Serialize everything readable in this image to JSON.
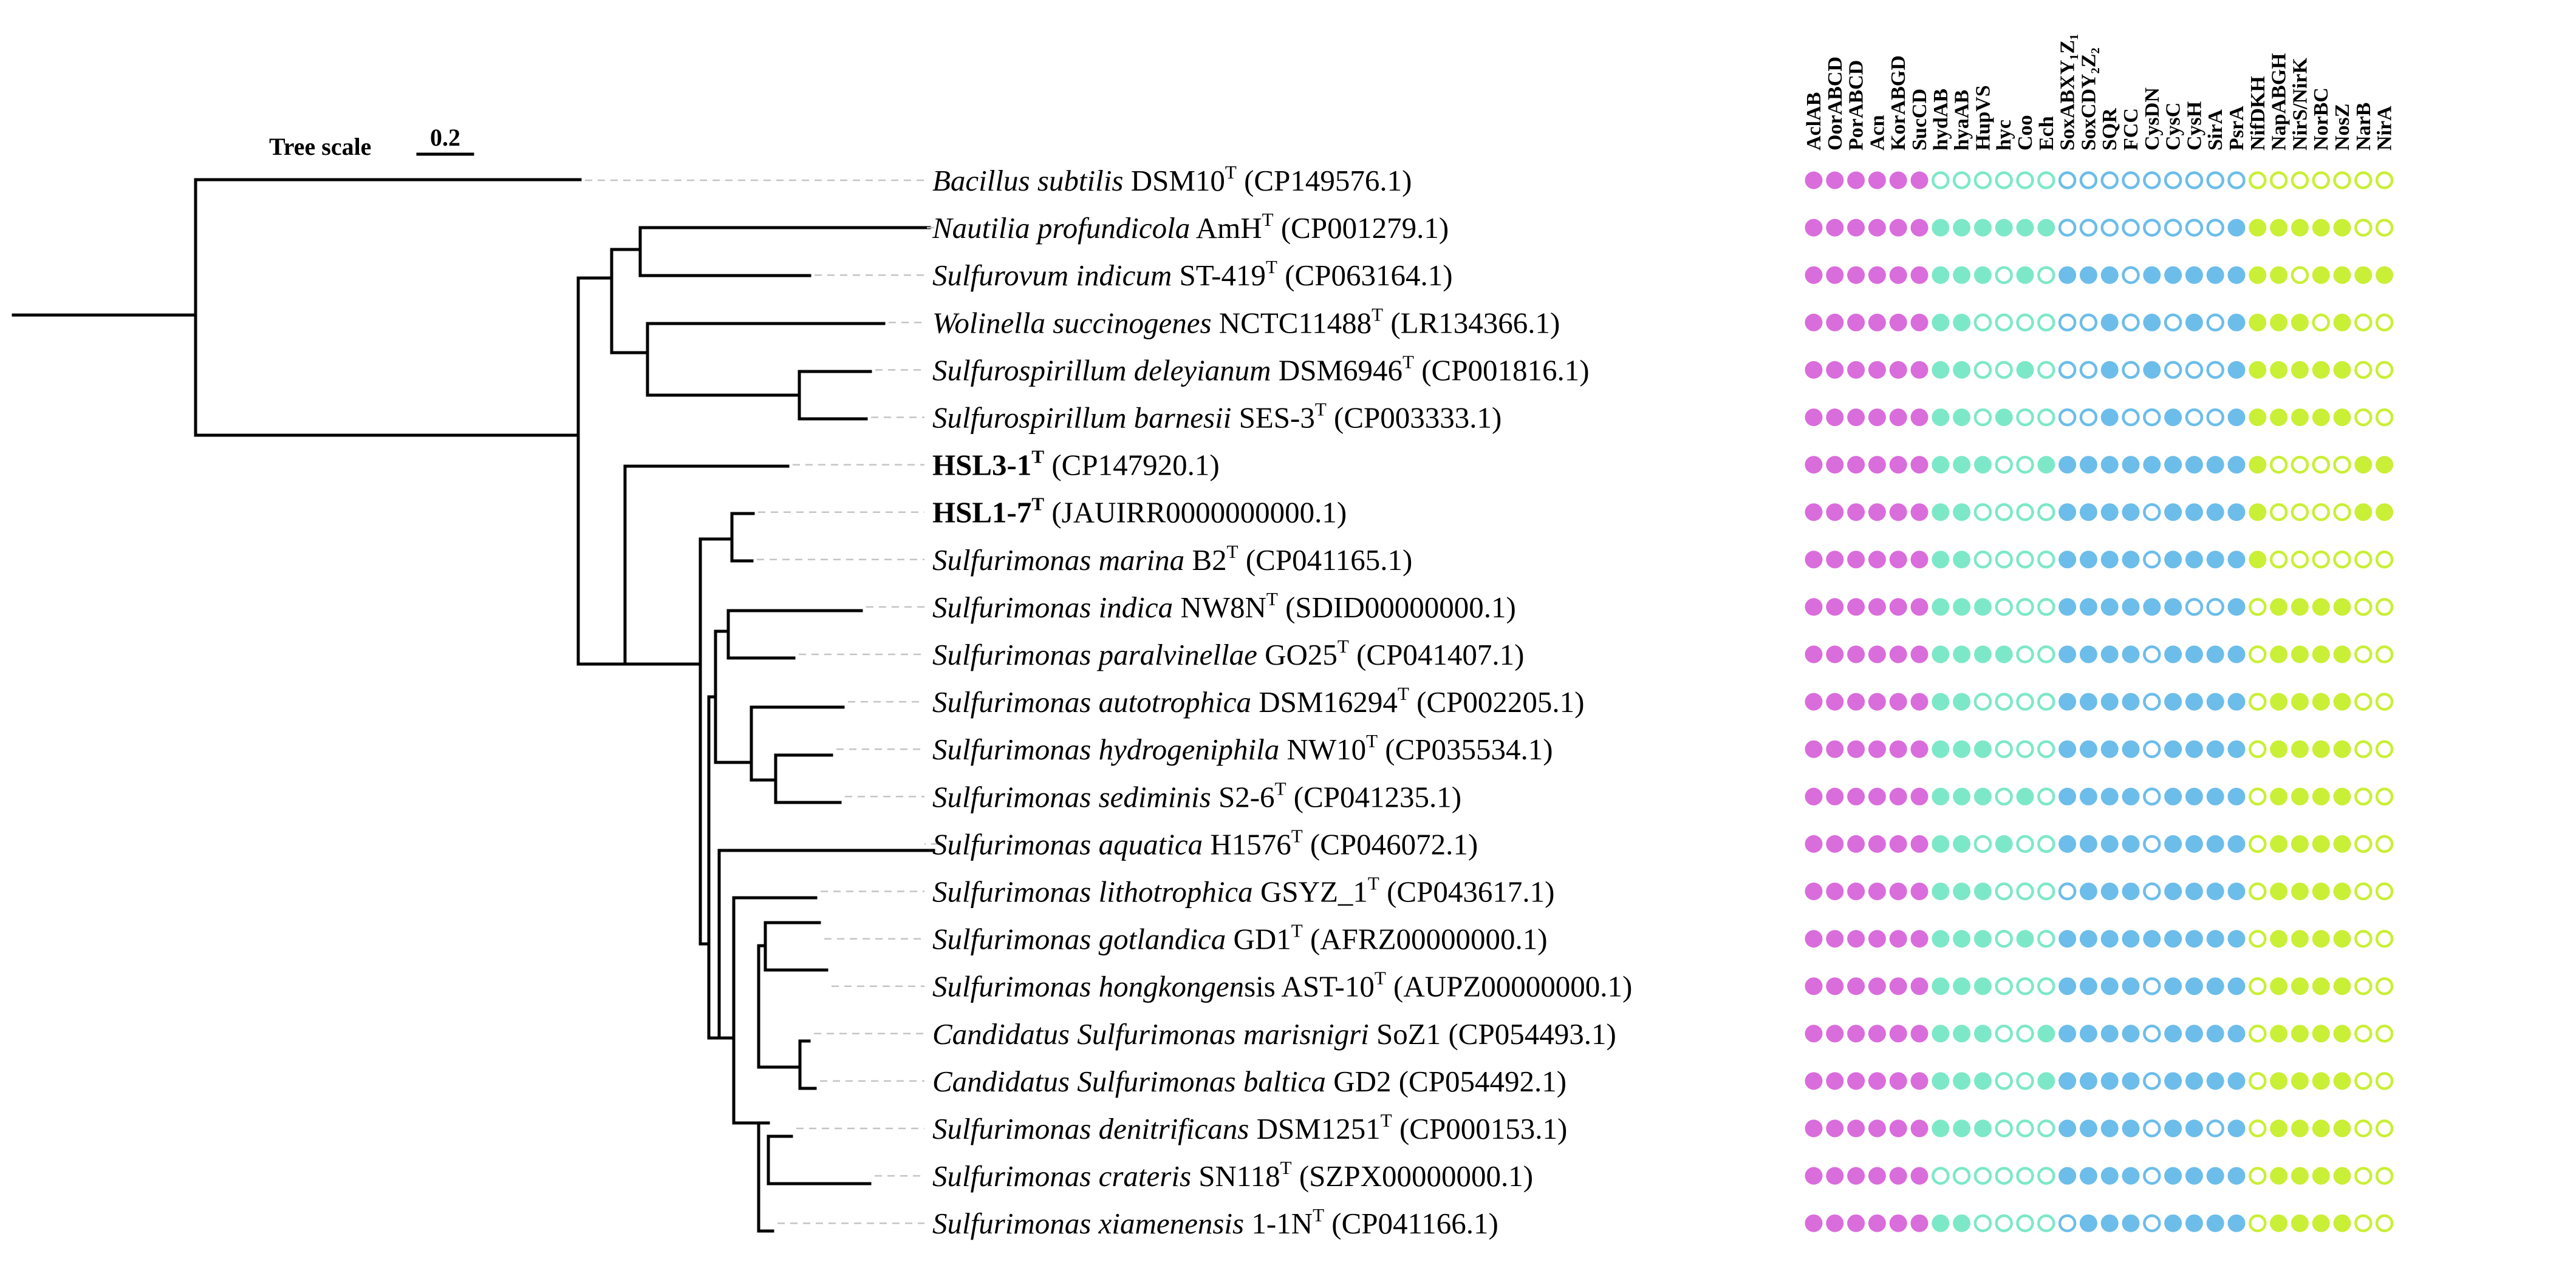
{
  "scale": {
    "title": "Tree scale",
    "value": "0.2"
  },
  "genes": [
    {
      "label": "AclAB",
      "group": "c"
    },
    {
      "label": "OorABCD",
      "group": "c"
    },
    {
      "label": "PorABCD",
      "group": "c"
    },
    {
      "label": "Acn",
      "group": "c"
    },
    {
      "label": "KorABGD",
      "group": "c"
    },
    {
      "label": "SucCD",
      "group": "c"
    },
    {
      "label": "hydAB",
      "group": "h"
    },
    {
      "label": "hyaAB",
      "group": "h"
    },
    {
      "label": "HupVS",
      "group": "h"
    },
    {
      "label": "hyc",
      "group": "h"
    },
    {
      "label": "Coo",
      "group": "h"
    },
    {
      "label": "Ech",
      "group": "h"
    },
    {
      "label": "SoxABXY₁Z₁",
      "group": "s"
    },
    {
      "label": "SoxCDY₂Z₂",
      "group": "s"
    },
    {
      "label": "SQR",
      "group": "s"
    },
    {
      "label": "FCC",
      "group": "s"
    },
    {
      "label": "CysDN",
      "group": "s"
    },
    {
      "label": "CysC",
      "group": "s"
    },
    {
      "label": "CysH",
      "group": "s"
    },
    {
      "label": "SirA",
      "group": "s"
    },
    {
      "label": "PsrA",
      "group": "s"
    },
    {
      "label": "NifDKH",
      "group": "n"
    },
    {
      "label": "NapABGH",
      "group": "n"
    },
    {
      "label": "NirS/NirK",
      "group": "n"
    },
    {
      "label": "NorBC",
      "group": "n"
    },
    {
      "label": "NosZ",
      "group": "n"
    },
    {
      "label": "NarB",
      "group": "n"
    },
    {
      "label": "NirA",
      "group": "n"
    }
  ],
  "colors": {
    "c": "#d96ddb",
    "h": "#7de8c8",
    "s": "#6cbde9",
    "n": "#c9ef36"
  },
  "taxa": [
    {
      "italic": "Bacillus subtilis",
      "strain": "DSM10",
      "sup": "T",
      "acc": "(CP149576.1)",
      "bold": false,
      "pattern": "111111|000000|000000000|0000000"
    },
    {
      "italic": "Nautilia profundicola",
      "strain": "AmH",
      "sup": "T",
      "acc": "(CP001279.1)",
      "bold": false,
      "pattern": "111111|111111|000000001|1111100"
    },
    {
      "italic": "Sulfurovum indicum",
      "strain": "ST-419",
      "sup": "T",
      "acc": "(CP063164.1)",
      "bold": false,
      "pattern": "111111|111010|111011111|1101111"
    },
    {
      "italic": "Wolinella succinogenes",
      "strain": "NCTC11488",
      "sup": "T",
      "acc": "(LR134366.1)",
      "bold": false,
      "pattern": "111111|110000|001010101|1110100"
    },
    {
      "italic": "Sulfurospirillum deleyianum",
      "strain": "DSM6946",
      "sup": "T",
      "acc": "(CP001816.1)",
      "bold": false,
      "pattern": "111111|110010|001010001|1111100"
    },
    {
      "italic": "Sulfurospirillum barnesii",
      "strain": "SES-3",
      "sup": "T",
      "acc": "(CP003333.1)",
      "bold": false,
      "pattern": "111111|110100|001001001|1111100"
    },
    {
      "italic": "",
      "strain": "HSL3-1",
      "sup": "T",
      "acc": "(CP147920.1)",
      "bold": true,
      "pattern": "111111|111001|111111111|1000011"
    },
    {
      "italic": "",
      "strain": "HSL1-7",
      "sup": "T",
      "acc": "(JAUIRR0000000000.1)",
      "bold": true,
      "pattern": "111111|110000|111101111|1000011"
    },
    {
      "italic": "Sulfurimonas marina",
      "strain": "B2",
      "sup": "T",
      "acc": "(CP041165.1)",
      "bold": false,
      "pattern": "111111|110000|111101111|1000000"
    },
    {
      "italic": "Sulfurimonas indica",
      "strain": "NW8N",
      "sup": "T",
      "acc": "(SDID00000000.1)",
      "bold": false,
      "pattern": "111111|111000|111111001|0111100"
    },
    {
      "italic": "Sulfurimonas paralvinellae",
      "strain": "GO25",
      "sup": "T",
      "acc": "(CP041407.1)",
      "bold": false,
      "pattern": "111111|111100|111101111|0111100"
    },
    {
      "italic": "Sulfurimonas autotrophica",
      "strain": "DSM16294",
      "sup": "T",
      "acc": "(CP002205.1)",
      "bold": false,
      "pattern": "111111|110000|111101111|0111100"
    },
    {
      "italic": "Sulfurimonas hydrogeniphila",
      "strain": "NW10",
      "sup": "T",
      "acc": "(CP035534.1)",
      "bold": false,
      "pattern": "111111|111000|111101111|0111100"
    },
    {
      "italic": "Sulfurimonas sediminis",
      "strain": "S2-6",
      "sup": "T",
      "acc": "(CP041235.1)",
      "bold": false,
      "pattern": "111111|111010|111101111|0111100"
    },
    {
      "italic": "Sulfurimonas aquatica",
      "strain": "H1576",
      "sup": "T",
      "acc": "(CP046072.1)",
      "bold": false,
      "pattern": "111111|110100|111101111|0111100"
    },
    {
      "italic": "Sulfurimonas lithotrophica",
      "strain": "GSYZ_1",
      "sup": "T",
      "acc": "(CP043617.1)",
      "bold": false,
      "pattern": "111111|111000|011101111|0111100"
    },
    {
      "italic": "Sulfurimonas gotlandica",
      "strain": "GD1",
      "sup": "T",
      "acc": "(AFRZ00000000.1)",
      "bold": false,
      "pattern": "111111|111010|111111111|0111100"
    },
    {
      "italic": "Sulfurimonas hongkongen",
      "italic_tail": "sis",
      "strain": "AST-10",
      "sup": "T",
      "acc": "(AUPZ00000000.1)",
      "bold": false,
      "pattern": "111111|111000|111101111|0111100"
    },
    {
      "italic": "Candidatus Sulfurimonas marisnigri",
      "strain": "SoZ1",
      "sup": "",
      "acc": "(CP054493.1)",
      "bold": false,
      "pattern": "111111|111001|111101111|0111100"
    },
    {
      "italic": "Candidatus Sulfurimonas baltica",
      "strain": "GD2",
      "sup": "",
      "acc": "(CP054492.1)",
      "bold": false,
      "pattern": "111111|111001|111101111|0111100"
    },
    {
      "italic": "Sulfurimonas denitrificans",
      "strain": "DSM1251",
      "sup": "T",
      "acc": "(CP000153.1)",
      "bold": false,
      "pattern": "111111|111000|111101101|0111100"
    },
    {
      "italic": "Sulfurimonas crateris",
      "strain": "SN118",
      "sup": "T",
      "acc": "(SZPX00000000.1)",
      "bold": false,
      "pattern": "111111|000000|111101111|0111100"
    },
    {
      "italic": "Sulfurimonas xiamenensis",
      "strain": "1-1N",
      "sup": "T",
      "acc": "(CP041166.1)",
      "bold": false,
      "pattern": "111111|110000|011101111|0111100"
    }
  ]
}
